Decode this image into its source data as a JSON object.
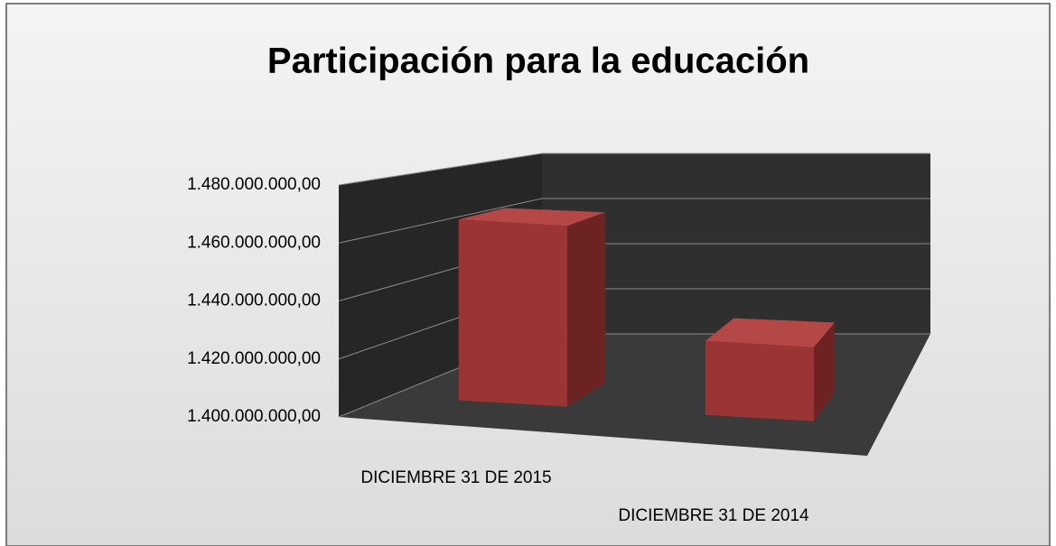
{
  "chart_data": {
    "type": "bar3d",
    "title": "Participación para la educación",
    "categories": [
      "DICIEMBRE 31 DE 2015",
      "DICIEMBRE 31 DE 2014"
    ],
    "values": [
      1466000000,
      1427000000
    ],
    "color": "#9b3535",
    "ylim": [
      1400000000,
      1480000000
    ],
    "yticks": [
      {
        "value": 1400000000,
        "label": "1.400.000.000,00"
      },
      {
        "value": 1420000000,
        "label": "1.420.000.000,00"
      },
      {
        "value": 1440000000,
        "label": "1.440.000.000,00"
      },
      {
        "value": 1460000000,
        "label": "1.460.000.000,00"
      },
      {
        "value": 1480000000,
        "label": "1.480.000.000,00"
      }
    ],
    "grid": true
  }
}
